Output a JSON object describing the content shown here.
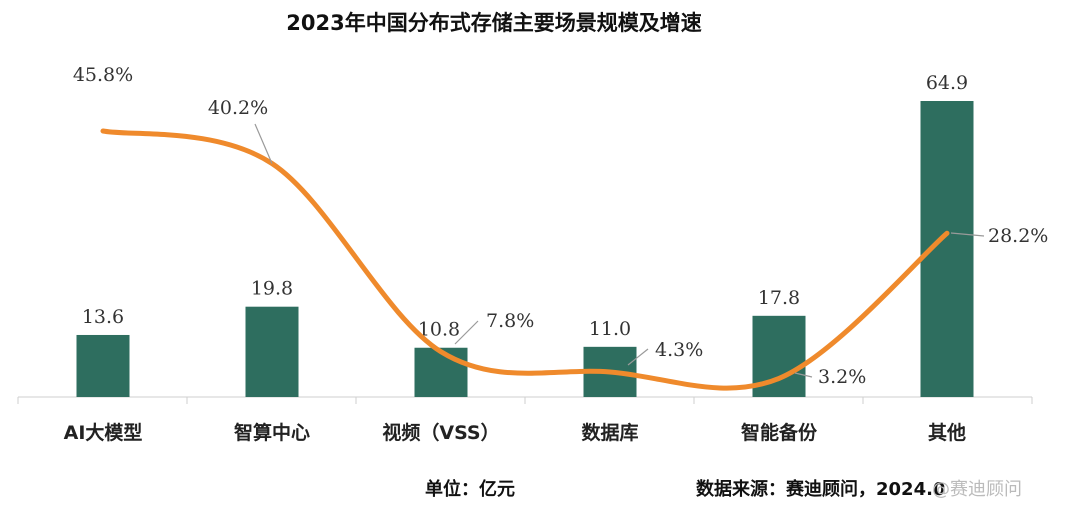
{
  "colors": {
    "bar": "#2e6e5f",
    "line": "#ef8a2c",
    "leader": "#9a9a9a",
    "axis": "#cfcfcf"
  },
  "footer": {
    "unit": "单位：亿元",
    "source": "数据来源：赛迪顾问，2024.0",
    "watermark": "@赛迪顾问"
  },
  "chart_data": {
    "type": "bar",
    "title": "2023年中国分布式存储主要场景规模及增速",
    "categories": [
      "AI大模型",
      "智算中心",
      "视频（VSS）",
      "数据库",
      "智能备份",
      "其他"
    ],
    "series": [
      {
        "values": [
          13.6,
          19.8,
          10.8,
          11.0,
          17.8,
          64.9
        ],
        "value_labels": [
          "13.6",
          "19.8",
          "10.8",
          "11.0",
          "17.8",
          "64.9"
        ]
      },
      {
        "type": "line",
        "values": [
          45.8,
          40.2,
          7.8,
          4.3,
          3.2,
          28.2
        ],
        "value_labels": [
          "45.8%",
          "40.2%",
          "7.8%",
          "4.3%",
          "3.2%",
          "28.2%"
        ]
      }
    ],
    "legend": "none",
    "grid": false
  }
}
